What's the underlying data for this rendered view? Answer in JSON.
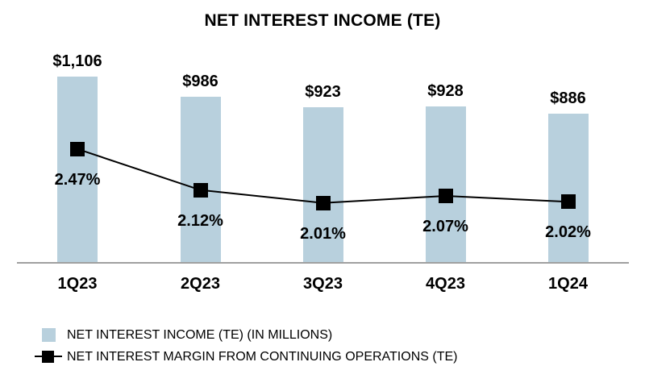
{
  "chart_data": {
    "type": "bar",
    "title": "NET INTEREST INCOME (TE)",
    "categories": [
      "1Q23",
      "2Q23",
      "3Q23",
      "4Q23",
      "1Q24"
    ],
    "series": [
      {
        "name": "NET INTEREST INCOME (TE) (IN MILLIONS)",
        "type": "bar",
        "values": [
          1106,
          986,
          923,
          928,
          886
        ],
        "labels": [
          "$1,106",
          "$986",
          "$923",
          "$928",
          "$886"
        ],
        "color": "#b8d0dd"
      },
      {
        "name": "NET INTEREST MARGIN FROM CONTINUING OPERATIONS (TE)",
        "type": "line",
        "values": [
          2.47,
          2.12,
          2.01,
          2.07,
          2.02
        ],
        "labels": [
          "2.47%",
          "2.12%",
          "2.01%",
          "2.07%",
          "2.02%"
        ],
        "color": "#000000",
        "marker": "square"
      }
    ],
    "bar_axis": {
      "min": 0
    },
    "line_axis": {
      "baseline_value": 1.5,
      "unit": "%"
    },
    "grid": false,
    "legend_position": "bottom-left",
    "background": "#ffffff",
    "axis_line_color": "#a0a0a0"
  }
}
